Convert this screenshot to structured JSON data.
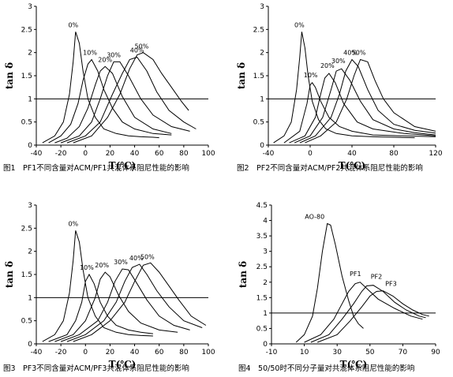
{
  "chart_data": [
    {
      "type": "line",
      "caption": "图1　PF1不同含量对ACM/PF1共混体系阻尼性能的影响",
      "xlabel": "T(℃)",
      "ylabel": "tan δ",
      "xlim": [
        -40,
        100
      ],
      "ylim": [
        0,
        3
      ],
      "xticks": [
        -40,
        -20,
        0,
        20,
        40,
        60,
        80,
        100
      ],
      "yticks": [
        0,
        0.5,
        1,
        1.5,
        2,
        2.5,
        3
      ],
      "reference_line": 1,
      "series": [
        {
          "name": "0%",
          "x": [
            -35,
            -25,
            -18,
            -13,
            -10,
            -8,
            -5,
            -2,
            2,
            8,
            15,
            25,
            35,
            45,
            55,
            60
          ],
          "y": [
            0.05,
            0.2,
            0.5,
            1.1,
            1.8,
            2.45,
            2.2,
            1.6,
            1.0,
            0.6,
            0.35,
            0.25,
            0.2,
            0.18,
            0.17,
            0.16
          ]
        },
        {
          "name": "10%",
          "x": [
            -30,
            -20,
            -12,
            -6,
            -2,
            2,
            5,
            10,
            15,
            22,
            30,
            40,
            55,
            70
          ],
          "y": [
            0.05,
            0.2,
            0.45,
            0.9,
            1.4,
            1.75,
            1.85,
            1.6,
            1.2,
            0.8,
            0.5,
            0.35,
            0.25,
            0.22
          ]
        },
        {
          "name": "20%",
          "x": [
            -25,
            -15,
            -5,
            2,
            8,
            12,
            16,
            22,
            30,
            40,
            55,
            70
          ],
          "y": [
            0.05,
            0.15,
            0.4,
            0.8,
            1.3,
            1.6,
            1.7,
            1.55,
            1.05,
            0.6,
            0.35,
            0.25
          ]
        },
        {
          "name": "30%",
          "x": [
            -20,
            -5,
            5,
            12,
            18,
            23,
            28,
            35,
            45,
            55,
            70,
            85
          ],
          "y": [
            0.05,
            0.2,
            0.5,
            1.0,
            1.5,
            1.8,
            1.8,
            1.5,
            1.0,
            0.65,
            0.4,
            0.3
          ]
        },
        {
          "name": "40%",
          "x": [
            -15,
            0,
            12,
            22,
            30,
            36,
            42,
            50,
            58,
            68,
            80,
            90
          ],
          "y": [
            0.05,
            0.2,
            0.5,
            1.1,
            1.55,
            1.85,
            1.9,
            1.6,
            1.15,
            0.75,
            0.5,
            0.35
          ]
        },
        {
          "name": "50%",
          "x": [
            -10,
            5,
            18,
            28,
            36,
            42,
            47,
            55,
            62,
            70,
            78,
            84
          ],
          "y": [
            0.05,
            0.2,
            0.6,
            1.1,
            1.65,
            1.95,
            2.0,
            1.85,
            1.55,
            1.25,
            0.95,
            0.75
          ]
        }
      ]
    },
    {
      "type": "line",
      "caption": "图2　PF2不同含量对ACM/PF2共混体系阻尼性能的影响",
      "xlabel": "T(℃)",
      "ylabel": "tan δ",
      "xlim": [
        -40,
        120
      ],
      "ylim": [
        0,
        3
      ],
      "xticks": [
        -40,
        0,
        40,
        80,
        120
      ],
      "yticks": [
        0,
        0.5,
        1,
        1.5,
        2,
        2.5,
        3
      ],
      "reference_line": 1,
      "series": [
        {
          "name": "0%",
          "x": [
            -35,
            -25,
            -18,
            -13,
            -10,
            -8,
            -5,
            -2,
            2,
            8,
            15,
            25,
            40,
            60,
            80,
            100
          ],
          "y": [
            0.05,
            0.2,
            0.5,
            1.2,
            1.9,
            2.45,
            2.1,
            1.5,
            0.95,
            0.55,
            0.35,
            0.25,
            0.2,
            0.18,
            0.17,
            0.16
          ]
        },
        {
          "name": "10%",
          "x": [
            -25,
            -10,
            -3,
            0,
            2,
            5,
            10,
            18,
            28,
            40,
            60,
            90,
            120
          ],
          "y": [
            0.05,
            0.3,
            0.9,
            1.3,
            1.35,
            1.25,
            0.95,
            0.6,
            0.4,
            0.3,
            0.22,
            0.2,
            0.18
          ]
        },
        {
          "name": "20%",
          "x": [
            -20,
            -5,
            5,
            10,
            14,
            18,
            24,
            32,
            45,
            60,
            90,
            120
          ],
          "y": [
            0.05,
            0.2,
            0.6,
            1.1,
            1.45,
            1.55,
            1.35,
            0.9,
            0.5,
            0.35,
            0.25,
            0.2
          ]
        },
        {
          "name": "30%",
          "x": [
            -15,
            0,
            12,
            20,
            25,
            30,
            38,
            48,
            60,
            80,
            100,
            120
          ],
          "y": [
            0.05,
            0.2,
            0.6,
            1.2,
            1.6,
            1.65,
            1.4,
            0.95,
            0.55,
            0.35,
            0.27,
            0.22
          ]
        },
        {
          "name": "40%",
          "x": [
            -10,
            5,
            20,
            28,
            34,
            40,
            46,
            55,
            65,
            80,
            100,
            120
          ],
          "y": [
            0.05,
            0.2,
            0.6,
            1.1,
            1.6,
            1.85,
            1.7,
            1.2,
            0.75,
            0.45,
            0.32,
            0.26
          ]
        },
        {
          "name": "50%",
          "x": [
            -5,
            10,
            25,
            35,
            42,
            48,
            55,
            62,
            70,
            80,
            100,
            120
          ],
          "y": [
            0.05,
            0.2,
            0.5,
            1.0,
            1.5,
            1.85,
            1.8,
            1.4,
            1.0,
            0.7,
            0.4,
            0.3
          ]
        }
      ]
    },
    {
      "type": "line",
      "caption": "图3　PF3不同含量对ACM/PF3共混体系阻尼性能的影响",
      "xlabel": "T(℃)",
      "ylabel": "tan δ",
      "xlim": [
        -40,
        100
      ],
      "ylim": [
        0,
        3
      ],
      "xticks": [
        -40,
        -20,
        0,
        20,
        40,
        60,
        80,
        100
      ],
      "yticks": [
        0,
        0.5,
        1,
        1.5,
        2,
        2.5,
        3
      ],
      "reference_line": 1,
      "series": [
        {
          "name": "0%",
          "x": [
            -35,
            -25,
            -18,
            -13,
            -10,
            -8,
            -5,
            -2,
            2,
            8,
            15,
            25,
            35,
            45,
            55
          ],
          "y": [
            0.05,
            0.2,
            0.5,
            1.1,
            1.8,
            2.45,
            2.2,
            1.6,
            1.0,
            0.6,
            0.35,
            0.25,
            0.2,
            0.18,
            0.17
          ]
        },
        {
          "name": "10%",
          "x": [
            -30,
            -15,
            -8,
            -3,
            0,
            3,
            7,
            12,
            18,
            25,
            35,
            45,
            55
          ],
          "y": [
            0.05,
            0.2,
            0.5,
            0.9,
            1.35,
            1.5,
            1.3,
            0.9,
            0.6,
            0.4,
            0.3,
            0.25,
            0.22
          ]
        },
        {
          "name": "20%",
          "x": [
            -25,
            -10,
            0,
            8,
            12,
            16,
            20,
            27,
            35,
            45,
            60,
            75
          ],
          "y": [
            0.05,
            0.2,
            0.5,
            1.0,
            1.4,
            1.55,
            1.45,
            1.05,
            0.7,
            0.45,
            0.3,
            0.25
          ]
        },
        {
          "name": "30%",
          "x": [
            -20,
            -5,
            10,
            18,
            24,
            30,
            35,
            42,
            50,
            60,
            72,
            85
          ],
          "y": [
            0.05,
            0.2,
            0.5,
            0.9,
            1.35,
            1.62,
            1.6,
            1.3,
            0.95,
            0.6,
            0.4,
            0.3
          ]
        },
        {
          "name": "40%",
          "x": [
            -15,
            0,
            15,
            25,
            32,
            38,
            44,
            50,
            58,
            68,
            80,
            95
          ],
          "y": [
            0.05,
            0.2,
            0.5,
            0.9,
            1.35,
            1.65,
            1.72,
            1.5,
            1.15,
            0.8,
            0.5,
            0.35
          ]
        },
        {
          "name": "50%",
          "x": [
            -10,
            5,
            20,
            32,
            40,
            47,
            53,
            60,
            68,
            76,
            86,
            98
          ],
          "y": [
            0.05,
            0.2,
            0.5,
            0.9,
            1.35,
            1.7,
            1.75,
            1.55,
            1.25,
            0.95,
            0.6,
            0.4
          ]
        }
      ]
    },
    {
      "type": "line",
      "caption": "图4　50/50时不同分子量对共混体系阻尼性能的影响",
      "xlabel": "T(℃)",
      "ylabel": "tan δ",
      "xlim": [
        -10,
        90
      ],
      "ylim": [
        0,
        4.5
      ],
      "xticks": [
        -10,
        10,
        30,
        50,
        70,
        90
      ],
      "yticks": [
        0,
        0.5,
        1,
        1.5,
        2,
        2.5,
        3,
        3.5,
        4,
        4.5
      ],
      "reference_line": 1,
      "series": [
        {
          "name": "AO-80",
          "x": [
            5,
            10,
            15,
            18,
            21,
            24,
            26,
            29,
            33,
            37,
            40,
            43,
            46
          ],
          "y": [
            0.05,
            0.3,
            0.9,
            1.8,
            3.0,
            3.9,
            3.85,
            3.2,
            2.2,
            1.4,
            0.9,
            0.65,
            0.5
          ]
        },
        {
          "name": "PF1",
          "x": [
            10,
            20,
            28,
            33,
            37,
            41,
            44,
            48,
            55,
            65,
            75,
            82
          ],
          "y": [
            0.05,
            0.3,
            0.8,
            1.3,
            1.7,
            1.95,
            2.0,
            1.8,
            1.45,
            1.15,
            0.9,
            0.8
          ]
        },
        {
          "name": "PF2",
          "x": [
            14,
            25,
            33,
            40,
            45,
            48,
            52,
            58,
            65,
            72,
            80,
            84
          ],
          "y": [
            0.05,
            0.3,
            0.8,
            1.3,
            1.7,
            1.88,
            1.9,
            1.7,
            1.35,
            1.1,
            0.9,
            0.85
          ]
        },
        {
          "name": "PF3",
          "x": [
            18,
            30,
            38,
            45,
            50,
            54,
            58,
            64,
            70,
            76,
            82,
            86
          ],
          "y": [
            0.05,
            0.3,
            0.75,
            1.2,
            1.55,
            1.7,
            1.72,
            1.55,
            1.3,
            1.1,
            0.95,
            0.9
          ]
        }
      ]
    }
  ]
}
